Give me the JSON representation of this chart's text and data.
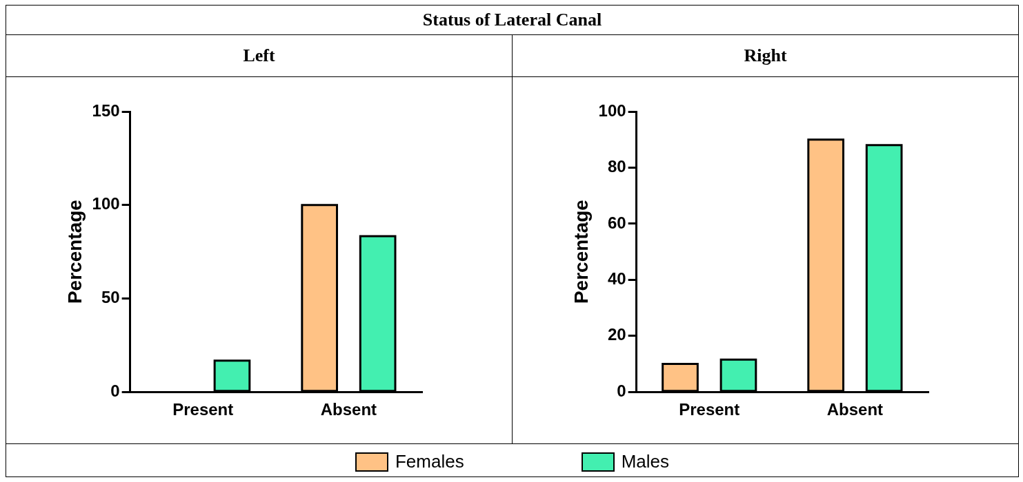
{
  "chart_data": [
    {
      "type": "bar",
      "title": "Status of Lateral Canal",
      "subtitle": "Left",
      "ylabel": "Percentage",
      "categories": [
        "Present",
        "Absent"
      ],
      "series": [
        {
          "name": "Females",
          "color": "#ffc285",
          "values": [
            0,
            100
          ]
        },
        {
          "name": "Males",
          "color": "#43efb0",
          "values": [
            16.7,
            83.3
          ]
        }
      ],
      "ylim": [
        0,
        150
      ],
      "yticks": [
        0,
        50,
        100,
        150
      ],
      "grid": false,
      "legend": "bottom"
    },
    {
      "type": "bar",
      "subtitle": "Right",
      "ylabel": "Percentage",
      "categories": [
        "Present",
        "Absent"
      ],
      "series": [
        {
          "color": "#ffc285",
          "values": [
            10,
            90
          ]
        },
        {
          "color": "#43efb0",
          "values": [
            11.5,
            88
          ]
        }
      ],
      "ylim": [
        0,
        100
      ],
      "yticks": [
        0,
        20,
        40,
        60,
        80,
        100
      ],
      "grid": false
    }
  ]
}
